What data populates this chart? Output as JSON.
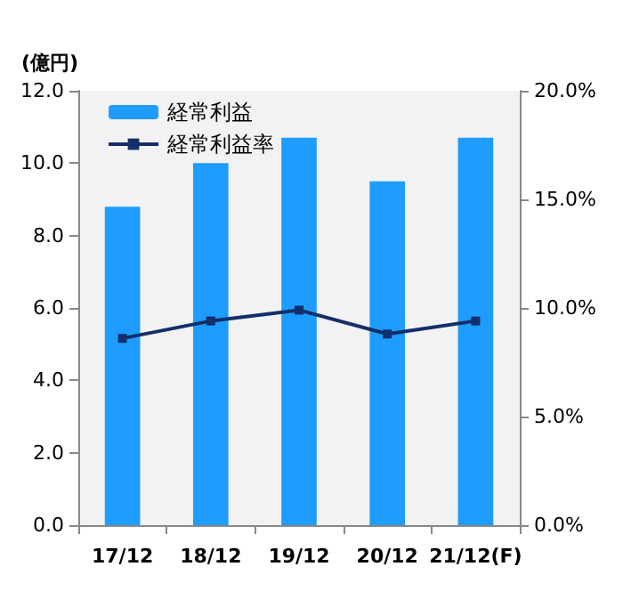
{
  "chart_data": {
    "type": "bar",
    "ylabel": "(億円)",
    "categories": [
      "17/12",
      "18/12",
      "19/12",
      "20/12",
      "21/12(F)"
    ],
    "series": [
      {
        "name": "経常利益",
        "color": "#1e9cff",
        "values": [
          8.8,
          10.0,
          10.7,
          9.5,
          10.7
        ]
      },
      {
        "name": "経常利益率",
        "type": "line",
        "axis": "y2",
        "color": "#132f6b",
        "values": [
          8.6,
          9.4,
          9.9,
          8.8,
          9.4
        ]
      }
    ],
    "ylim": [
      0,
      12
    ],
    "yticks": [
      {
        "value": 0,
        "label": "0.0"
      },
      {
        "value": 2,
        "label": "2.0"
      },
      {
        "value": 4,
        "label": "4.0"
      },
      {
        "value": 6,
        "label": "6.0"
      },
      {
        "value": 8,
        "label": "8.0"
      },
      {
        "value": 10,
        "label": "10.0"
      },
      {
        "value": 12,
        "label": "12.0"
      }
    ],
    "y2lim": [
      0,
      20
    ],
    "y2ticks": [
      {
        "value": 0,
        "label": "0.0%"
      },
      {
        "value": 5,
        "label": "5.0%"
      },
      {
        "value": 10,
        "label": "10.0%"
      },
      {
        "value": 15,
        "label": "15.0%"
      },
      {
        "value": 20,
        "label": "20.0%"
      }
    ],
    "legend": "top left",
    "marker": "square",
    "grid": false
  }
}
